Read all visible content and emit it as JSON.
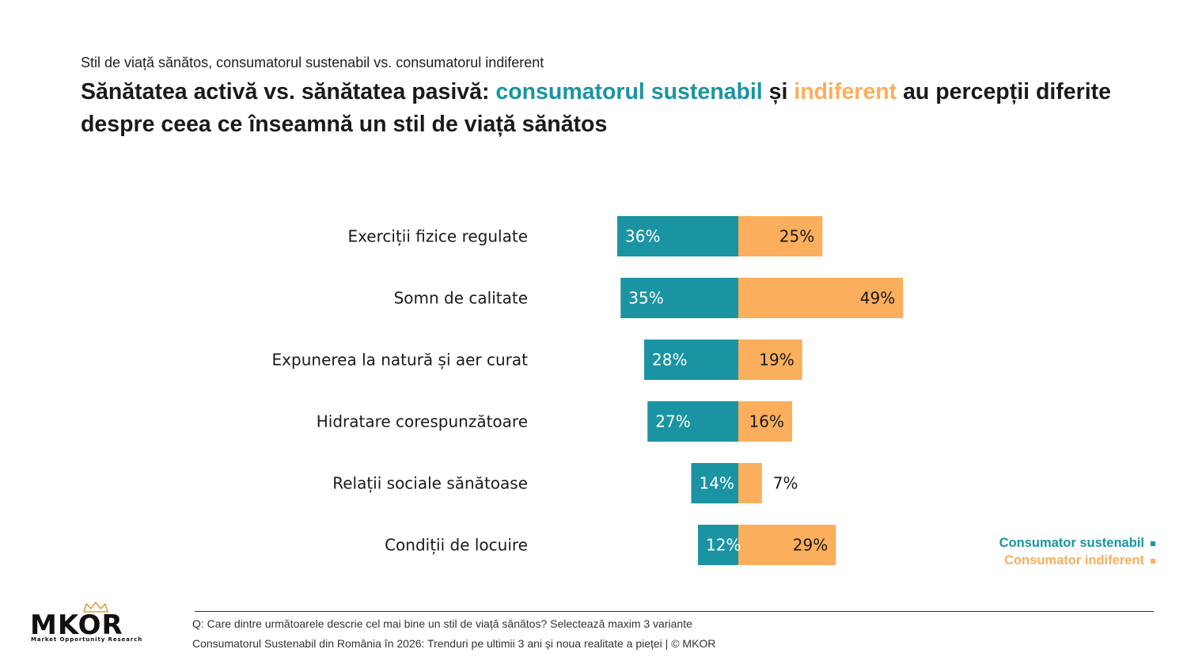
{
  "header": {
    "kicker": "Stil de viață sănătos, consumatorul sustenabil vs. consumatorul indiferent",
    "headline_part1": "Sănătatea activă vs. sănătatea pasivă: ",
    "headline_teal": "consumatorul sustenabil",
    "headline_part2": " și ",
    "headline_orange": "indiferent",
    "headline_part3": " au percepții diferite despre ceea ce înseamnă un stil de viață sănătos"
  },
  "chart_data": {
    "type": "bar",
    "orientation": "horizontal-diverging",
    "categories": [
      "Exerciții fizice regulate",
      "Somn de calitate",
      "Expunerea la natură și aer curat",
      "Hidratare corespunzătoare",
      "Relații sociale sănătoase",
      "Condiții de locuire"
    ],
    "series": [
      {
        "name": "Consumator sustenabil",
        "values": [
          36,
          35,
          28,
          27,
          14,
          12
        ],
        "labels": [
          "36%",
          "35%",
          "28%",
          "27%",
          "14%",
          "12%"
        ],
        "color": "#1a94a3"
      },
      {
        "name": "Consumator indiferent",
        "values": [
          25,
          49,
          19,
          16,
          7,
          29
        ],
        "labels": [
          "25%",
          "49%",
          "19%",
          "16%",
          "7%",
          "29%"
        ],
        "color": "#fbae5c"
      }
    ],
    "unit": "%",
    "legend_position": "bottom-right",
    "grid": false
  },
  "legend": {
    "sustainable": "Consumator sustenabil",
    "indifferent": "Consumator indiferent"
  },
  "logo": {
    "name": "MKOR",
    "tagline": "Market Opportunity Research"
  },
  "footer": {
    "question": "Q: Care dintre următoarele descrie cel mai bine un stil de viață sănătos? Selectează maxim 3 variante",
    "source": "Consumatorul Sustenabil din România în 2026: Trenduri pe ultimii 3 ani și noua realitate a pieței | © MKOR"
  },
  "colors": {
    "teal": "#1a94a3",
    "orange": "#fbae5c",
    "text": "#1a1a1a"
  }
}
